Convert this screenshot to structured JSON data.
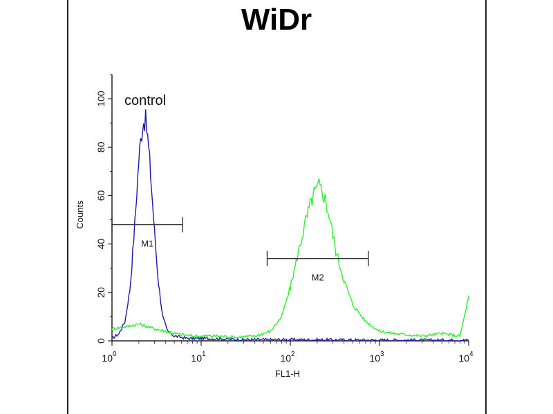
{
  "chart_data": {
    "type": "line",
    "title": "WiDr",
    "xlabel": "FL1-H",
    "ylabel": "Counts",
    "xscale": "log",
    "xlim": [
      1,
      10000
    ],
    "ylim": [
      0,
      110
    ],
    "x_ticks": [
      {
        "base": "10",
        "exp": "0",
        "value": 1
      },
      {
        "base": "10",
        "exp": "1",
        "value": 10
      },
      {
        "base": "10",
        "exp": "2",
        "value": 100
      },
      {
        "base": "10",
        "exp": "3",
        "value": 1000
      },
      {
        "base": "10",
        "exp": "4",
        "value": 10000
      }
    ],
    "y_ticks": [
      "0",
      "20",
      "40",
      "60",
      "80",
      "100"
    ],
    "annotation": "control",
    "series": [
      {
        "name": "control",
        "color": "#1a1aa8",
        "points": [
          [
            1.0,
            1
          ],
          [
            1.2,
            3
          ],
          [
            1.4,
            8
          ],
          [
            1.6,
            22
          ],
          [
            1.8,
            48
          ],
          [
            2.0,
            75
          ],
          [
            2.2,
            90
          ],
          [
            2.35,
            92
          ],
          [
            2.5,
            85
          ],
          [
            2.7,
            70
          ],
          [
            3.0,
            45
          ],
          [
            3.3,
            25
          ],
          [
            3.7,
            10
          ],
          [
            4.2,
            4
          ],
          [
            5,
            2
          ],
          [
            7,
            1
          ],
          [
            12,
            1
          ],
          [
            30,
            0.5
          ],
          [
            100,
            0.5
          ],
          [
            1000,
            0.3
          ],
          [
            10000,
            0.3
          ]
        ]
      },
      {
        "color": "#33ee33",
        "points": [
          [
            1.0,
            5
          ],
          [
            1.5,
            6
          ],
          [
            2,
            7
          ],
          [
            3,
            5
          ],
          [
            4,
            4
          ],
          [
            5,
            3
          ],
          [
            8,
            2
          ],
          [
            15,
            2
          ],
          [
            25,
            1.5
          ],
          [
            40,
            2
          ],
          [
            60,
            4
          ],
          [
            80,
            10
          ],
          [
            100,
            22
          ],
          [
            120,
            35
          ],
          [
            150,
            50
          ],
          [
            180,
            60
          ],
          [
            210,
            64
          ],
          [
            240,
            60
          ],
          [
            280,
            50
          ],
          [
            320,
            38
          ],
          [
            400,
            25
          ],
          [
            500,
            15
          ],
          [
            700,
            8
          ],
          [
            1000,
            4
          ],
          [
            1500,
            3
          ],
          [
            3000,
            2
          ],
          [
            5000,
            3
          ],
          [
            8000,
            2
          ],
          [
            10000,
            18
          ]
        ]
      }
    ],
    "markers": [
      {
        "label": "M1",
        "x_start": 1.0,
        "x_end": 6.2,
        "y": 48
      },
      {
        "label": "M2",
        "x_start": 55,
        "x_end": 750,
        "y": 34
      }
    ]
  }
}
